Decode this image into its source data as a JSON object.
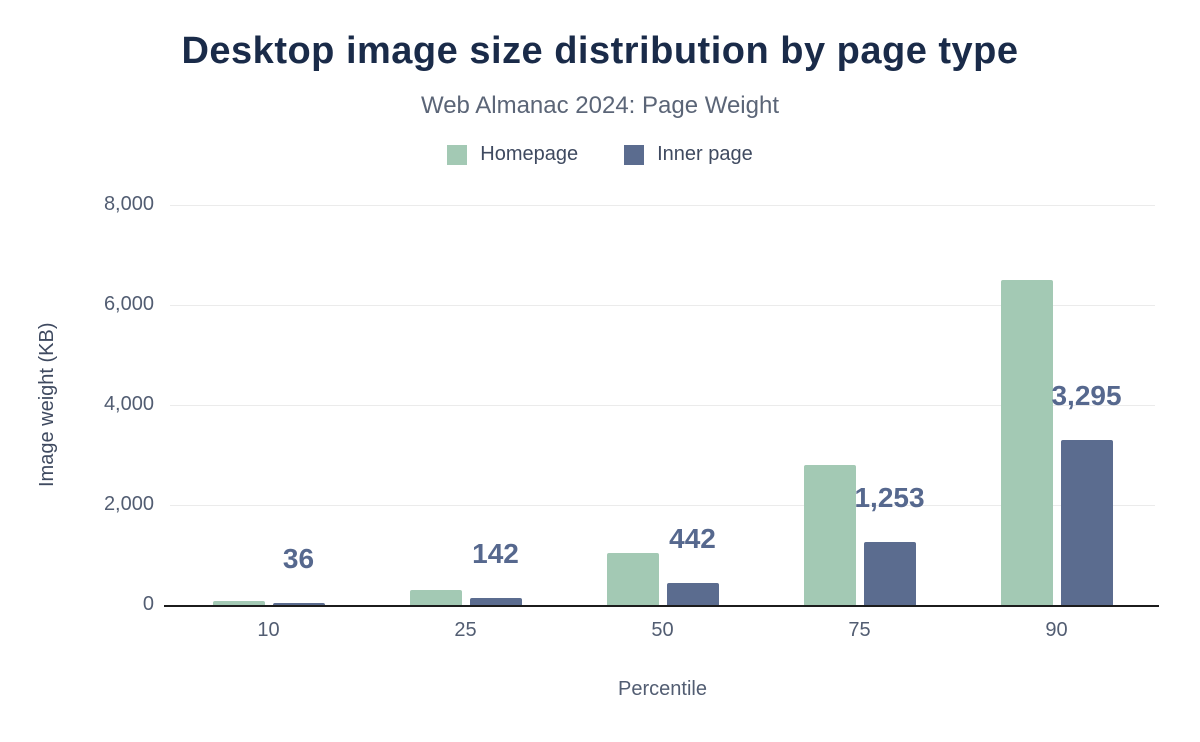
{
  "chart_data": {
    "type": "bar",
    "title": "Desktop image size distribution by page type",
    "subtitle": "Web Almanac 2024: Page Weight",
    "xlabel": "Percentile",
    "ylabel": "Image weight (KB)",
    "categories": [
      "10",
      "25",
      "50",
      "75",
      "90"
    ],
    "series": [
      {
        "name": "Homepage",
        "color": "#a3c9b4",
        "values": [
          90,
          300,
          1050,
          2800,
          6500
        ]
      },
      {
        "name": "Inner page",
        "color": "#5b6c8f",
        "values": [
          36,
          142,
          442,
          1253,
          3295
        ],
        "labels": [
          "36",
          "142",
          "442",
          "1,253",
          "3,295"
        ]
      }
    ],
    "ylim": [
      0,
      8000
    ],
    "yticks": [
      0,
      2000,
      4000,
      6000,
      8000
    ],
    "ytick_labels": [
      "0",
      "2,000",
      "4,000",
      "6,000",
      "8,000"
    ],
    "grid": true,
    "legend_position": "top"
  }
}
